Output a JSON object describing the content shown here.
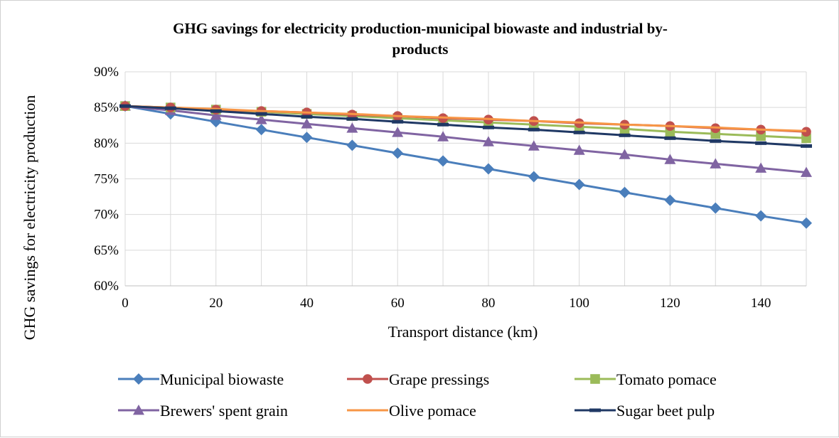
{
  "chart_data": {
    "type": "line",
    "title": "GHG savings for electricity production-municipal biowaste and industrial by-products",
    "title_lines": [
      "GHG savings for electricity production-municipal biowaste and industrial by-",
      "products"
    ],
    "xlabel": "Transport distance (km)",
    "ylabel": "GHG savings for electricity production",
    "xlim": [
      0,
      150
    ],
    "ylim": [
      0.6,
      0.9
    ],
    "x_ticks": [
      "0",
      "20",
      "40",
      "60",
      "80",
      "100",
      "120",
      "140"
    ],
    "y_ticks": [
      "60%",
      "65%",
      "70%",
      "75%",
      "80%",
      "85%",
      "90%"
    ],
    "grid": "vertical and horizontal",
    "legend_position": "bottom",
    "x": [
      0,
      10,
      20,
      30,
      40,
      50,
      60,
      70,
      80,
      90,
      100,
      110,
      120,
      130,
      140,
      150
    ],
    "series": [
      {
        "name": "Municipal biowaste",
        "color": "#4a7ebb",
        "marker": "diamond",
        "values": [
          0.852,
          0.841,
          0.83,
          0.819,
          0.808,
          0.797,
          0.786,
          0.775,
          0.764,
          0.753,
          0.742,
          0.731,
          0.72,
          0.709,
          0.698,
          0.688
        ]
      },
      {
        "name": "Grape pressings",
        "color": "#c0504d",
        "marker": "circle",
        "values": [
          0.852,
          0.85,
          0.847,
          0.845,
          0.843,
          0.84,
          0.838,
          0.835,
          0.833,
          0.831,
          0.828,
          0.826,
          0.824,
          0.821,
          0.819,
          0.816
        ]
      },
      {
        "name": "Tomato pomace",
        "color": "#9bbb59",
        "marker": "square",
        "values": [
          0.852,
          0.85,
          0.847,
          0.844,
          0.841,
          0.838,
          0.835,
          0.832,
          0.829,
          0.826,
          0.823,
          0.82,
          0.816,
          0.813,
          0.81,
          0.807
        ]
      },
      {
        "name": "Brewers' spent grain",
        "color": "#8064a2",
        "marker": "triangle",
        "values": [
          0.852,
          0.846,
          0.839,
          0.833,
          0.827,
          0.821,
          0.815,
          0.809,
          0.802,
          0.796,
          0.79,
          0.784,
          0.777,
          0.771,
          0.765,
          0.759
        ]
      },
      {
        "name": "Olive pomace",
        "color": "#f79646",
        "marker": "none",
        "values": [
          0.852,
          0.85,
          0.848,
          0.845,
          0.843,
          0.841,
          0.838,
          0.836,
          0.834,
          0.831,
          0.829,
          0.826,
          0.824,
          0.822,
          0.819,
          0.817
        ]
      },
      {
        "name": "Sugar beet pulp",
        "color": "#1f3864",
        "marker": "dash",
        "values": [
          0.852,
          0.849,
          0.845,
          0.841,
          0.837,
          0.834,
          0.83,
          0.826,
          0.822,
          0.819,
          0.815,
          0.811,
          0.807,
          0.803,
          0.8,
          0.796
        ]
      }
    ]
  }
}
